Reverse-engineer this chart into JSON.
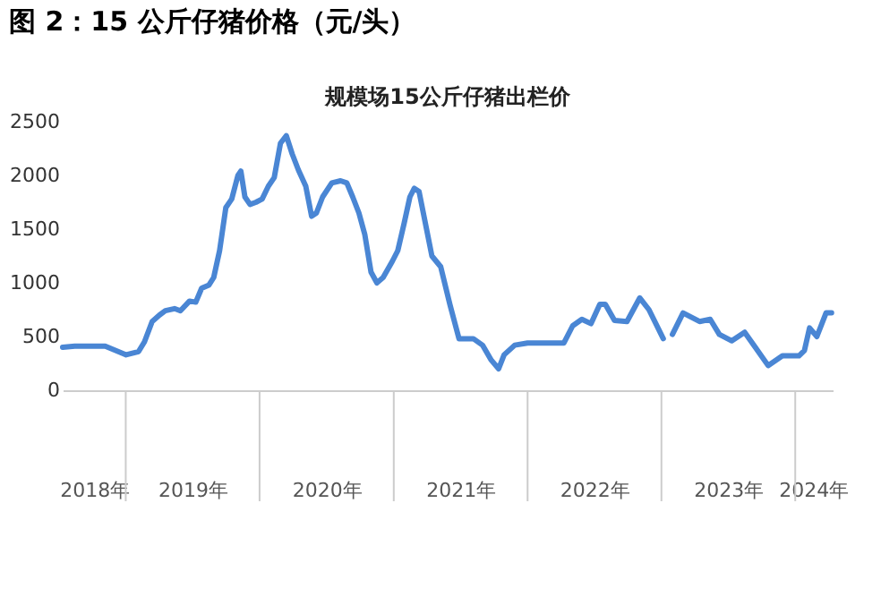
{
  "chart_data": {
    "type": "line",
    "title": "图 2：15 公斤仔猪价格（元/头）",
    "subtitle": "规模场15公斤仔猪出栏价",
    "x": [
      "2018-07-13",
      "2018-08-15",
      "2018-11-06",
      "2018-12-26",
      "2019-01-02",
      "2019-02-05",
      "2019-02-21",
      "2019-03-14",
      "2019-04-03",
      "2019-04-19",
      "2019-05-14",
      "2019-05-30",
      "2019-06-24",
      "2019-07-11",
      "2019-07-27",
      "2019-08-16",
      "2019-08-29",
      "2019-09-14",
      "2019-10-01",
      "2019-10-17",
      "2019-11-03",
      "2019-11-11",
      "2019-11-22",
      "2019-12-06",
      "2019-12-22",
      "2020-01-08",
      "2020-01-25",
      "2020-02-10",
      "2020-02-27",
      "2020-03-14",
      "2020-03-30",
      "2020-04-16",
      "2020-05-06",
      "2020-05-22",
      "2020-06-04",
      "2020-06-21",
      "2020-07-16",
      "2020-08-09",
      "2020-08-26",
      "2020-09-11",
      "2020-09-28",
      "2020-10-14",
      "2020-10-31",
      "2020-11-16",
      "2020-12-03",
      "2020-12-28",
      "2021-01-12",
      "2021-01-29",
      "2021-02-14",
      "2021-02-26",
      "2021-03-11",
      "2021-04-15",
      "2021-05-09",
      "2021-06-03",
      "2021-06-28",
      "2021-08-06",
      "2021-08-31",
      "2021-09-24",
      "2021-10-14",
      "2021-10-29",
      "2021-11-27",
      "2022-01-01",
      "2022-04-10",
      "2022-05-04",
      "2022-05-29",
      "2022-06-23",
      "2022-07-17",
      "2022-08-01",
      "2022-08-26",
      "2022-09-29",
      "2022-11-03",
      "2022-11-28",
      "2023-01-06",
      "2023-01-18",
      "2023-01-31",
      "2023-03-01",
      "2023-04-15",
      "2023-05-14",
      "2023-06-08",
      "2023-07-12",
      "2023-08-16",
      "2023-09-14",
      "2023-10-19",
      "2023-11-27",
      "2024-01-11",
      "2024-01-26",
      "2024-02-09",
      "2024-02-29",
      "2024-03-25",
      "2024-04-09"
    ],
    "series": [
      {
        "color": "#4a86d4",
        "values": [
          400,
          410,
          410,
          340,
          330,
          360,
          450,
          640,
          700,
          740,
          760,
          740,
          830,
          820,
          950,
          980,
          1050,
          1300,
          1700,
          1780,
          2000,
          2040,
          1800,
          1730,
          1750,
          1780,
          1900,
          1980,
          2300,
          2370,
          2200,
          2050,
          1900,
          1620,
          1650,
          1800,
          1930,
          1950,
          1930,
          1800,
          1650,
          1450,
          1100,
          1000,
          1050,
          1200,
          1300,
          1550,
          1800,
          1880,
          1850,
          1250,
          1150,
          800,
          480,
          480,
          420,
          280,
          200,
          330,
          420,
          440,
          440,
          600,
          660,
          620,
          800,
          800,
          650,
          640,
          860,
          750,
          480,
          null,
          520,
          720,
          640,
          660,
          520,
          460,
          540,
          400,
          230,
          320,
          320,
          370,
          580,
          500,
          720,
          720
        ]
      }
    ],
    "xlim": [
      "2018-07-13",
      "2024-04-12"
    ],
    "xticks": [
      {
        "value": "2018-10-07",
        "label": "2018年"
      },
      {
        "value": "2019-07-02",
        "label": "2019年"
      },
      {
        "value": "2020-07-02",
        "label": "2020年"
      },
      {
        "value": "2021-07-02",
        "label": "2021年"
      },
      {
        "value": "2022-07-02",
        "label": "2022年"
      },
      {
        "value": "2023-07-02",
        "label": "2023年"
      },
      {
        "value": "2024-02-19",
        "label": "2024年"
      }
    ],
    "ylim": [
      0,
      2500
    ],
    "yticks": [
      0,
      500,
      1000,
      1500,
      2000,
      2500
    ],
    "grid": false,
    "marker": "none",
    "line_style": "solid"
  }
}
